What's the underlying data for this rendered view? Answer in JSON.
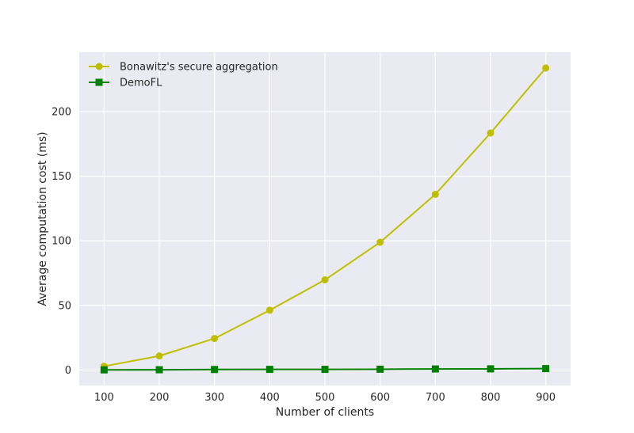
{
  "chart_data": {
    "type": "line",
    "title": "",
    "xlabel": "Number of clients",
    "ylabel": "Average computation cost (ms)",
    "x": [
      100,
      200,
      300,
      400,
      500,
      600,
      700,
      800,
      900
    ],
    "xticks": [
      "100",
      "200",
      "300",
      "400",
      "500",
      "600",
      "700",
      "800",
      "900"
    ],
    "yticks": [
      "0",
      "50",
      "100",
      "150",
      "200"
    ],
    "xlim": [
      55,
      945
    ],
    "ylim": [
      -12,
      246
    ],
    "grid": true,
    "legend_position": "top-left",
    "background_color": "#eaeaf2",
    "series": [
      {
        "name": "Bonawitz's secure aggregation",
        "color": "#bfbf00",
        "marker": "circle",
        "values": [
          2.9,
          10.9,
          24.4,
          46.3,
          69.8,
          98.9,
          136.0,
          183.5,
          233.8
        ]
      },
      {
        "name": "DemoFL",
        "color": "#008000",
        "marker": "square",
        "values": [
          0.1,
          0.2,
          0.4,
          0.5,
          0.5,
          0.6,
          0.8,
          0.9,
          1.1
        ]
      }
    ]
  }
}
